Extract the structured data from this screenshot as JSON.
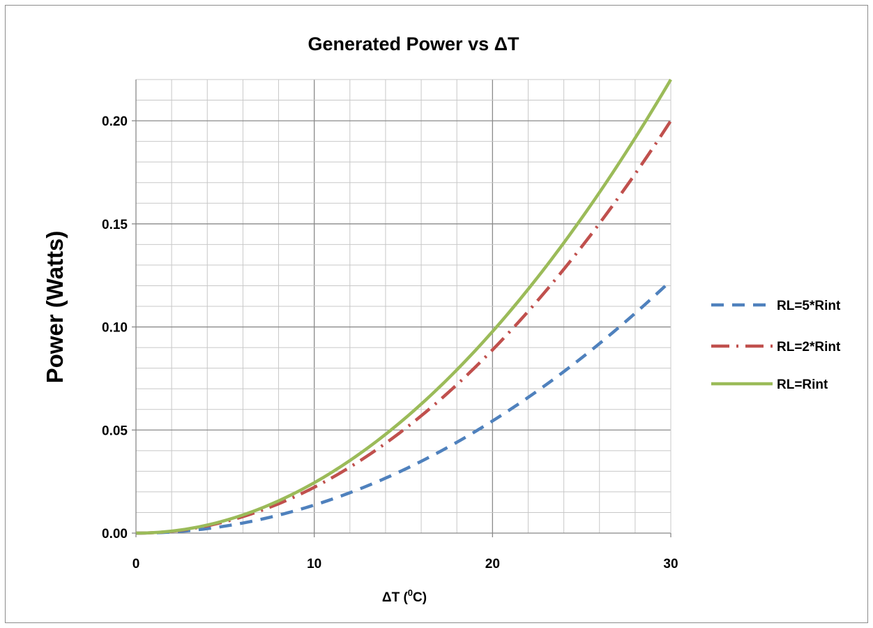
{
  "chart_data": {
    "type": "line",
    "title": "Generated Power vs ΔT",
    "xlabel_main": "ΔT (",
    "xlabel_sup": "0",
    "xlabel_end": "C)",
    "ylabel": "Power (Watts)",
    "xlim": [
      0,
      30
    ],
    "ylim": [
      0,
      0.22
    ],
    "x_ticks": [
      0,
      10,
      20,
      30
    ],
    "x_tick_labels": [
      "0",
      "10",
      "20",
      "30"
    ],
    "y_ticks": [
      0,
      0.05,
      0.1,
      0.15,
      0.2
    ],
    "y_tick_labels": [
      "0.00",
      "0.05",
      "0.10",
      "0.15",
      "0.20"
    ],
    "grid": true,
    "legend_position": "right",
    "series": [
      {
        "name": "RL=5*Rint",
        "color": "#4f81bd",
        "dash": "dashed",
        "x": [
          0,
          5,
          10,
          15,
          20,
          25,
          30
        ],
        "y": [
          0,
          0.0034,
          0.0136,
          0.0306,
          0.0544,
          0.085,
          0.1224
        ]
      },
      {
        "name": "RL=2*Rint",
        "color": "#c0504d",
        "dash": "dash-dot",
        "x": [
          0,
          5,
          10,
          15,
          20,
          25,
          30
        ],
        "y": [
          0,
          0.0055,
          0.0222,
          0.05,
          0.0889,
          0.1389,
          0.2
        ]
      },
      {
        "name": "RL=Rint",
        "color": "#9bbb59",
        "dash": "solid",
        "x": [
          0,
          5,
          10,
          15,
          20,
          25,
          30
        ],
        "y": [
          0,
          0.0061,
          0.0244,
          0.055,
          0.0978,
          0.1528,
          0.22
        ]
      }
    ]
  }
}
